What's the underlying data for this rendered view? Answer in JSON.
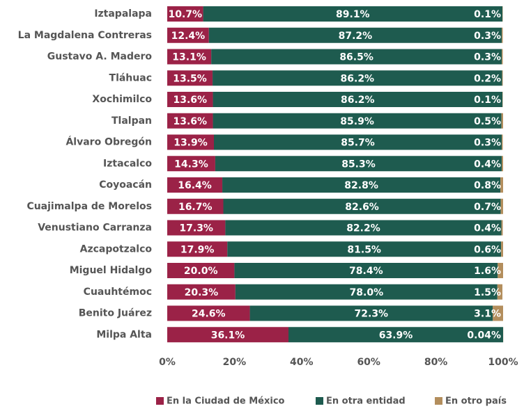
{
  "chart_data": {
    "type": "stacked_barh",
    "categories": [
      "Iztapalapa",
      "La Magdalena Contreras",
      "Gustavo A. Madero",
      "Tláhuac",
      "Xochimilco",
      "Tlalpan",
      "Álvaro Obregón",
      "Iztacalco",
      "Coyoacán",
      "Cuajimalpa de Morelos",
      "Venustiano Carranza",
      "Azcapotzalco",
      "Miguel Hidalgo",
      "Cuauhtémoc",
      "Benito Juárez",
      "Milpa Alta"
    ],
    "series": [
      {
        "name": "En la Ciudad de México",
        "color": "#9b2247",
        "values": [
          10.7,
          12.4,
          13.1,
          13.5,
          13.6,
          13.6,
          13.9,
          14.3,
          16.4,
          16.7,
          17.3,
          17.9,
          20.0,
          20.3,
          24.6,
          36.1
        ],
        "value_labels": [
          "10.7%",
          "12.4%",
          "13.1%",
          "13.5%",
          "13.6%",
          "13.6%",
          "13.9%",
          "14.3%",
          "16.4%",
          "16.7%",
          "17.3%",
          "17.9%",
          "20.0%",
          "20.3%",
          "24.6%",
          "36.1%"
        ]
      },
      {
        "name": "En otra entidad",
        "color": "#1e5b4f",
        "values": [
          89.1,
          87.2,
          86.5,
          86.2,
          86.2,
          85.9,
          85.7,
          85.3,
          82.8,
          82.6,
          82.2,
          81.5,
          78.4,
          78.0,
          72.3,
          63.9
        ],
        "value_labels": [
          "89.1%",
          "87.2%",
          "86.5%",
          "86.2%",
          "86.2%",
          "85.9%",
          "85.7%",
          "85.3%",
          "82.8%",
          "82.6%",
          "82.2%",
          "81.5%",
          "78.4%",
          "78.0%",
          "72.3%",
          "63.9%"
        ]
      },
      {
        "name": "En otro país",
        "color": "#b38e5d",
        "values": [
          0.1,
          0.3,
          0.3,
          0.2,
          0.1,
          0.5,
          0.3,
          0.4,
          0.8,
          0.7,
          0.4,
          0.6,
          1.6,
          1.5,
          3.1,
          0.04
        ],
        "value_labels": [
          "0.1%",
          "0.3%",
          "0.3%",
          "0.2%",
          "0.1%",
          "0.5%",
          "0.3%",
          "0.4%",
          "0.8%",
          "0.7%",
          "0.4%",
          "0.6%",
          "1.6%",
          "1.5%",
          "3.1%",
          "0.04%"
        ]
      }
    ],
    "xlim": [
      0,
      100
    ],
    "xticks": [
      {
        "value": 0,
        "label": "0%"
      },
      {
        "value": 20,
        "label": "20%"
      },
      {
        "value": 40,
        "label": "40%"
      },
      {
        "value": 60,
        "label": "60%"
      },
      {
        "value": 80,
        "label": "80%"
      },
      {
        "value": 100,
        "label": "100%"
      }
    ],
    "legend": "bottom"
  }
}
